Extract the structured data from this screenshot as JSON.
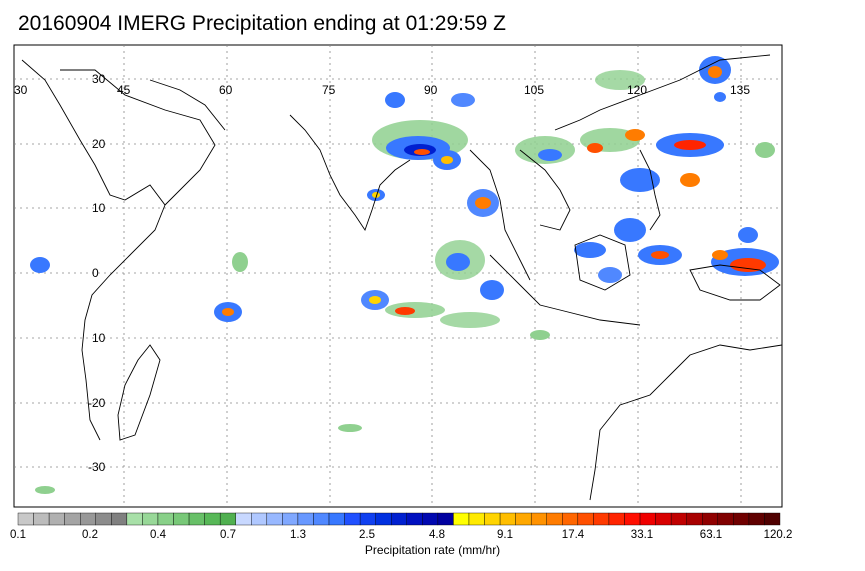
{
  "title": "20160904 IMERG Precipitation ending at 01:29:59 Z",
  "map": {
    "lon_labels": [
      "30",
      "45",
      "60",
      "75",
      "90",
      "105",
      "120",
      "135"
    ],
    "lat_labels": [
      "30",
      "20",
      "10",
      "0",
      "10",
      "-20",
      "-30"
    ],
    "coast_color": "#000000",
    "grid_color": "#888888"
  },
  "colorbar": {
    "title": "Precipitation rate (mm/hr)",
    "tick_labels": [
      "0.1",
      "0.2",
      "0.4",
      "0.7",
      "1.3",
      "2.5",
      "4.8",
      "9.1",
      "17.4",
      "33.1",
      "63.1",
      "120.2"
    ],
    "colors": [
      "#c8c8c8",
      "#bcbcbc",
      "#b0b0b0",
      "#a4a4a4",
      "#989898",
      "#8c8c8c",
      "#808080",
      "#a8e0a8",
      "#98d898",
      "#88d088",
      "#78c878",
      "#68c068",
      "#58b858",
      "#50b050",
      "#c8d8ff",
      "#b0c8ff",
      "#98b8ff",
      "#80a8ff",
      "#6898ff",
      "#5088ff",
      "#3878ff",
      "#2050ff",
      "#1040f0",
      "#0030e0",
      "#0020d0",
      "#0010c0",
      "#0008b0",
      "#0000a0",
      "#ffff00",
      "#ffea00",
      "#ffd400",
      "#ffbe00",
      "#ffa800",
      "#ff9200",
      "#ff7c00",
      "#ff6600",
      "#ff5000",
      "#ff3a00",
      "#ff2400",
      "#ff0e00",
      "#f00000",
      "#d80000",
      "#c00000",
      "#a80000",
      "#900000",
      "#800000",
      "#700000",
      "#600000",
      "#500000"
    ]
  }
}
